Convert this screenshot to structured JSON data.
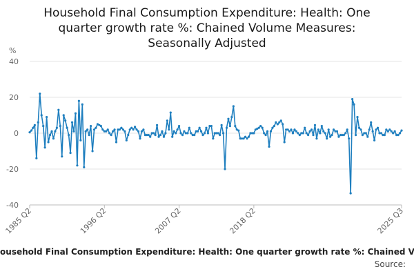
{
  "title_lines": [
    "Household Final Consumption Expenditure: Health: One",
    "quarter growth rate %: Chained Volume Measures:",
    "Seasonally Adjusted"
  ],
  "legend_text": "Household Final Consumption Expenditure: Health: One quarter growth rate %: Chained Volume Measures",
  "source_label": "Source:",
  "colors": {
    "line": "#1f7fbf",
    "grid": "#e5e5e5",
    "axis": "#bbbbbb",
    "text": "#666666"
  },
  "chart_data": {
    "type": "line",
    "title": "Household Final Consumption Expenditure: Health: One quarter growth rate %: Chained Volume Measures: Seasonally Adjusted",
    "ylabel": "%",
    "xlabel": "",
    "ylim": [
      -40,
      40
    ],
    "yticks": [
      40,
      20,
      0,
      -20,
      -40
    ],
    "xticks": [
      "1985 Q2",
      "1996 Q2",
      "2007 Q2",
      "2018 Q2",
      "2025 Q3"
    ],
    "x_start": "1985 Q2",
    "x_end": "2025 Q3",
    "grid": true,
    "legend": "bottom",
    "series": [
      {
        "name": "Household Final Consumption Expenditure: Health: One quarter growth rate %: Chained Volume Measures",
        "values": [
          0.5,
          1.5,
          3,
          4.5,
          -14,
          6,
          22,
          10,
          4,
          -8,
          9,
          -5,
          -1,
          1,
          -3,
          1,
          3,
          13,
          4,
          -13,
          10,
          7,
          3,
          -1,
          -11,
          6,
          1,
          11,
          -18,
          18,
          -4,
          16,
          -19,
          1,
          2,
          -1,
          4,
          -10,
          2,
          3,
          5,
          4.5,
          4,
          2,
          1,
          1,
          2,
          0,
          -1,
          1,
          2,
          -5,
          2,
          2,
          3,
          2,
          1,
          -4,
          -1,
          2,
          3,
          2,
          3.5,
          2,
          1,
          -3,
          1,
          2,
          -1,
          -1,
          -1,
          -2,
          0,
          0,
          -1,
          4.5,
          -2,
          -1,
          1,
          -2,
          0,
          7,
          2,
          11.5,
          -2,
          1,
          0,
          2,
          4,
          0,
          -1,
          1,
          0,
          0,
          3,
          0,
          -1,
          -1,
          1,
          1,
          3,
          1,
          -1,
          0,
          3,
          0,
          4,
          4,
          -3,
          0,
          0,
          0,
          -1,
          4.5,
          0,
          -20,
          3,
          8,
          4,
          9,
          15,
          4,
          2,
          1.5,
          -3,
          -3,
          -3,
          -2,
          -3,
          -2,
          0,
          0,
          0,
          2,
          2.5,
          3,
          4,
          3,
          0,
          -1,
          1,
          -7.5,
          1,
          3,
          4,
          6,
          5,
          6,
          7,
          5,
          -5,
          2,
          2,
          1,
          2,
          0,
          2,
          1,
          0,
          -1,
          0,
          0,
          3,
          0,
          -1,
          1,
          2,
          -1,
          4.5,
          -3,
          2,
          0,
          4,
          1,
          0,
          -3,
          2,
          -2,
          -1,
          2,
          1,
          1,
          -2,
          -1,
          -1,
          -1,
          0,
          2,
          -3,
          -33.5,
          19,
          16,
          -1,
          9,
          3,
          2,
          -1,
          0,
          0,
          -2,
          2,
          6,
          1,
          -4,
          2,
          3,
          0,
          0,
          -1,
          -1,
          2,
          1,
          2,
          1,
          0,
          1,
          -1,
          -1,
          0,
          1.5
        ]
      }
    ]
  }
}
